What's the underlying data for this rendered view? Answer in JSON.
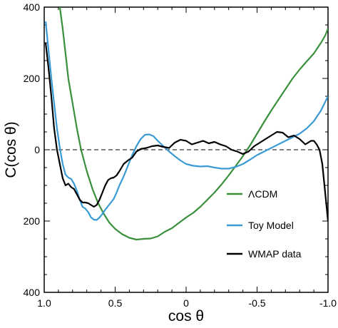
{
  "chart_data": {
    "type": "line",
    "xlabel": "cos θ",
    "ylabel": "C(cos θ)",
    "xlim": [
      1.0,
      -1.0
    ],
    "ylim": [
      -400,
      400
    ],
    "x_ticks": [
      {
        "value": 1.0,
        "label": "1.0"
      },
      {
        "value": 0.5,
        "label": "0.5"
      },
      {
        "value": 0.0,
        "label": "0"
      },
      {
        "value": -0.5,
        "label": "-0.5"
      },
      {
        "value": -1.0,
        "label": "-1.0"
      }
    ],
    "y_ticks": [
      {
        "value": 400,
        "label": "400"
      },
      {
        "value": 200,
        "label": "200"
      },
      {
        "value": 0,
        "label": "0"
      },
      {
        "value": -200,
        "label": "200"
      },
      {
        "value": -400,
        "label": "400"
      }
    ],
    "zero_line": {
      "y": 0,
      "style": "dashed"
    },
    "legend_position": "bottom-right",
    "series": [
      {
        "name": "ΛCDM",
        "color": "#3a8f3d",
        "x": [
          0.89,
          0.87,
          0.85,
          0.83,
          0.8,
          0.77,
          0.74,
          0.7,
          0.66,
          0.62,
          0.58,
          0.54,
          0.5,
          0.45,
          0.4,
          0.35,
          0.3,
          0.25,
          0.2,
          0.15,
          0.1,
          0.05,
          0.0,
          -0.05,
          -0.1,
          -0.15,
          -0.2,
          -0.25,
          -0.3,
          -0.35,
          -0.4,
          -0.45,
          -0.5,
          -0.55,
          -0.6,
          -0.65,
          -0.7,
          -0.75,
          -0.8,
          -0.85,
          -0.9,
          -0.95,
          -0.98,
          -1.0
        ],
        "y": [
          400,
          340,
          270,
          200,
          130,
          60,
          0,
          -60,
          -110,
          -150,
          -180,
          -205,
          -222,
          -237,
          -247,
          -252,
          -250,
          -249,
          -243,
          -230,
          -220,
          -205,
          -190,
          -177,
          -160,
          -140,
          -120,
          -97,
          -72,
          -45,
          -18,
          12,
          45,
          78,
          110,
          140,
          170,
          200,
          225,
          248,
          270,
          300,
          320,
          340
        ]
      },
      {
        "name": "Toy Model",
        "color": "#3a9ad4",
        "x": [
          0.99,
          0.97,
          0.95,
          0.93,
          0.91,
          0.89,
          0.87,
          0.85,
          0.83,
          0.81,
          0.79,
          0.77,
          0.75,
          0.73,
          0.71,
          0.69,
          0.67,
          0.65,
          0.63,
          0.61,
          0.59,
          0.57,
          0.55,
          0.53,
          0.51,
          0.49,
          0.47,
          0.44,
          0.41,
          0.38,
          0.35,
          0.32,
          0.29,
          0.26,
          0.23,
          0.2,
          0.16,
          0.12,
          0.08,
          0.04,
          0.0,
          -0.05,
          -0.1,
          -0.15,
          -0.2,
          -0.25,
          -0.3,
          -0.35,
          -0.4,
          -0.45,
          -0.5,
          -0.55,
          -0.6,
          -0.65,
          -0.7,
          -0.75,
          -0.8,
          -0.85,
          -0.9,
          -0.95,
          -1.0
        ],
        "y": [
          360,
          280,
          200,
          130,
          60,
          5,
          -40,
          -70,
          -78,
          -82,
          -95,
          -115,
          -140,
          -160,
          -165,
          -175,
          -190,
          -196,
          -197,
          -190,
          -180,
          -168,
          -158,
          -148,
          -138,
          -120,
          -100,
          -75,
          -45,
          -15,
          10,
          30,
          42,
          43,
          38,
          25,
          10,
          -5,
          -18,
          -30,
          -40,
          -45,
          -47,
          -46,
          -50,
          -53,
          -53,
          -48,
          -40,
          -28,
          -15,
          -5,
          5,
          15,
          25,
          35,
          45,
          60,
          80,
          110,
          150
        ]
      },
      {
        "name": "WMAP data",
        "color": "#000000",
        "x": [
          0.99,
          0.97,
          0.95,
          0.93,
          0.91,
          0.89,
          0.87,
          0.85,
          0.83,
          0.81,
          0.79,
          0.77,
          0.75,
          0.73,
          0.71,
          0.69,
          0.67,
          0.65,
          0.63,
          0.61,
          0.59,
          0.57,
          0.55,
          0.53,
          0.51,
          0.49,
          0.47,
          0.44,
          0.41,
          0.38,
          0.35,
          0.32,
          0.28,
          0.24,
          0.2,
          0.16,
          0.12,
          0.08,
          0.04,
          0.0,
          -0.04,
          -0.08,
          -0.12,
          -0.16,
          -0.2,
          -0.24,
          -0.28,
          -0.32,
          -0.36,
          -0.4,
          -0.44,
          -0.48,
          -0.52,
          -0.56,
          -0.6,
          -0.64,
          -0.68,
          -0.72,
          -0.76,
          -0.8,
          -0.84,
          -0.88,
          -0.9,
          -0.92,
          -0.94,
          -0.96,
          -0.98,
          -1.0
        ],
        "y": [
          300,
          230,
          150,
          60,
          0,
          -40,
          -80,
          -100,
          -95,
          -105,
          -110,
          -125,
          -140,
          -148,
          -148,
          -150,
          -155,
          -160,
          -155,
          -140,
          -120,
          -100,
          -85,
          -80,
          -78,
          -72,
          -60,
          -40,
          -30,
          -22,
          -5,
          2,
          5,
          10,
          12,
          8,
          5,
          20,
          28,
          25,
          15,
          20,
          25,
          18,
          22,
          15,
          10,
          0,
          -5,
          -12,
          -5,
          10,
          20,
          30,
          40,
          50,
          48,
          35,
          40,
          30,
          15,
          25,
          25,
          15,
          0,
          -40,
          -120,
          -200
        ]
      }
    ]
  }
}
